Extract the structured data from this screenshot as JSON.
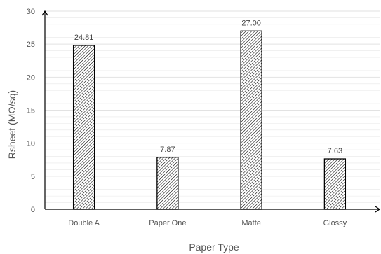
{
  "chart_data": {
    "type": "bar",
    "title": "",
    "xlabel": "Paper Type",
    "ylabel": "Rsheet (MΩ/sq)",
    "categories": [
      "Double A",
      "Paper One",
      "Matte",
      "Glossy"
    ],
    "values": [
      24.81,
      7.87,
      27.0,
      7.63
    ],
    "value_labels": [
      "24.81",
      "7.87",
      "27.00",
      "7.63"
    ],
    "ylim": [
      0,
      30
    ],
    "yticks": [
      0,
      5,
      10,
      15,
      20,
      25,
      30
    ],
    "ytick_labels": [
      "0",
      "5",
      "10",
      "15",
      "20",
      "25",
      "30"
    ],
    "grid": true,
    "minor_grid": true,
    "bar_fill": "diagonal-hatch",
    "colors": {
      "bar_edge": "#000000",
      "hatch": "#000000",
      "grid": "#e2e2e2",
      "axis": "#000000"
    }
  }
}
